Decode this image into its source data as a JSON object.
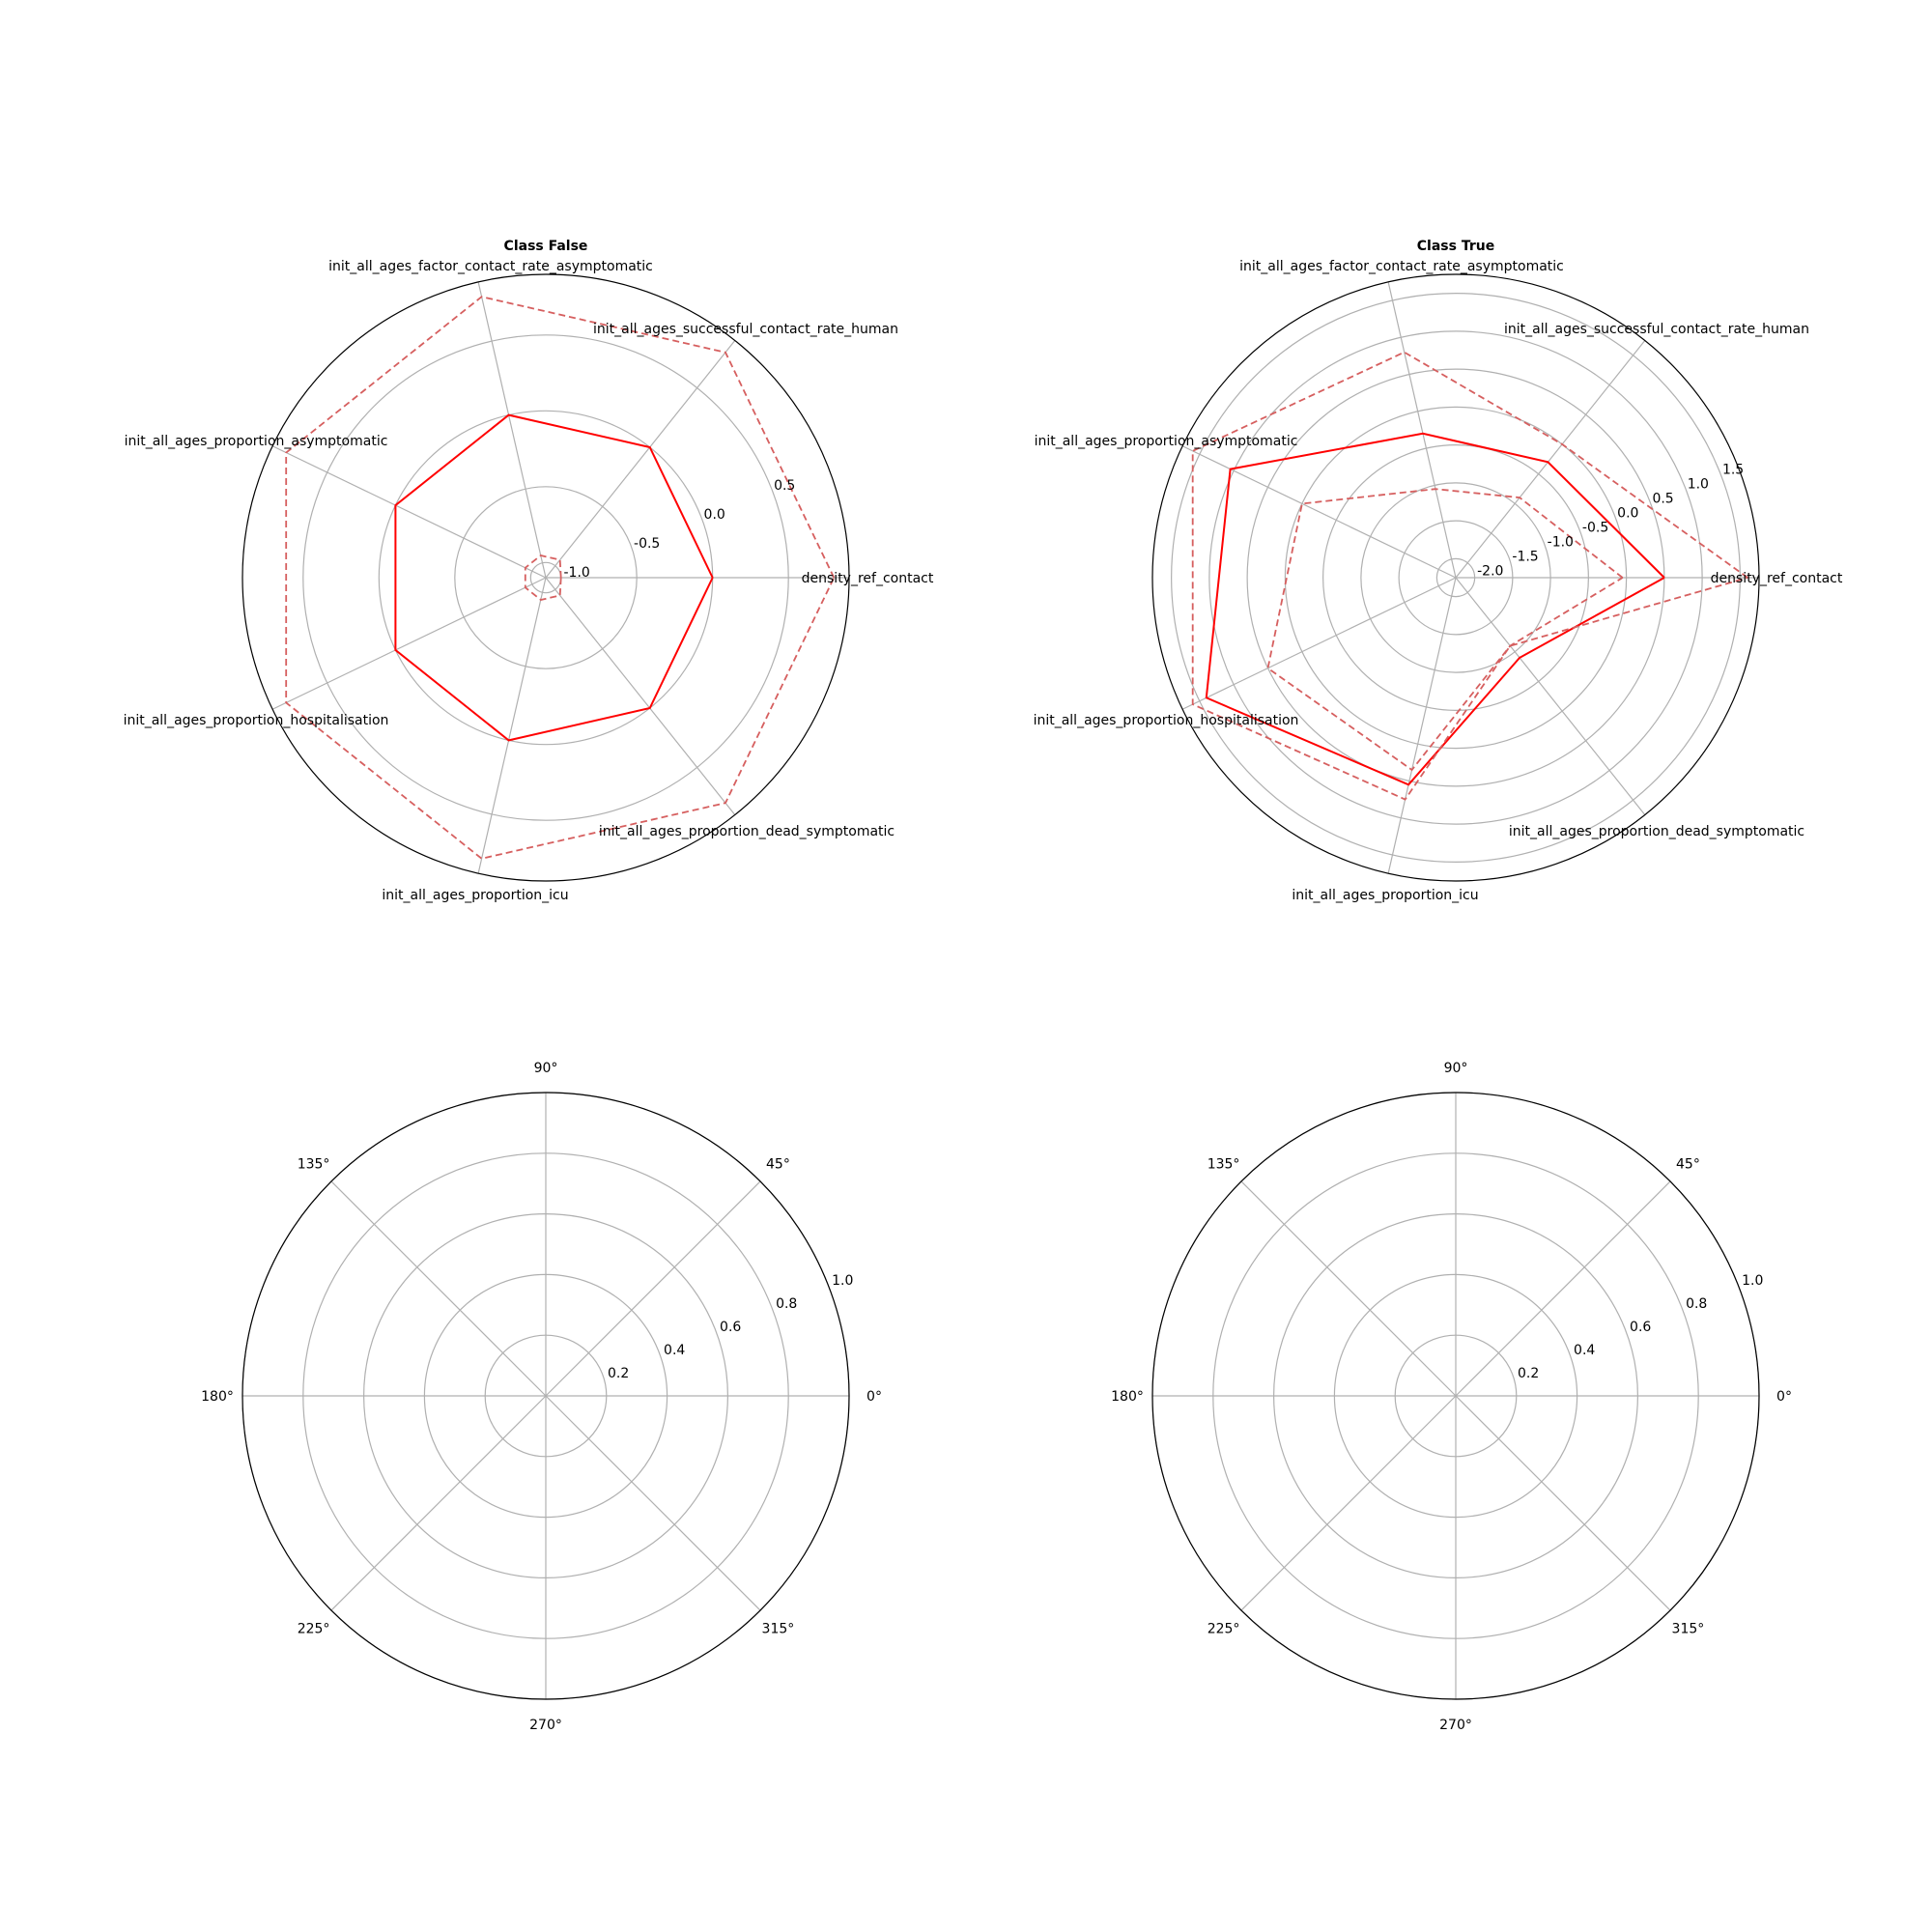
{
  "chart_data": [
    {
      "type": "radar",
      "title": "Class False",
      "categories": [
        "density_ref_contact",
        "init_all_ages_successful_contact_rate_human",
        "init_all_ages_factor_contact_rate_asymptomatic",
        "init_all_ages_proportion_asymptomatic",
        "init_all_ages_proportion_hospitalisation",
        "init_all_ages_proportion_icu",
        "init_all_ages_proportion_dead_symptomatic"
      ],
      "r_ticks": [
        -1.0,
        -0.5,
        0.0,
        0.5
      ],
      "r_tick_labels": [
        "-1.0",
        "-0.5",
        "0.0",
        "0.5"
      ],
      "rlim": [
        -1.1,
        0.9
      ],
      "grid": true,
      "series": [
        {
          "style": "solid",
          "color": "#ff0000",
          "values": [
            0.0,
            0.0,
            0.0,
            0.0,
            0.0,
            0.0,
            0.0
          ]
        },
        {
          "style": "dashed",
          "color": "#d65f5f",
          "values": [
            0.8,
            0.8,
            0.8,
            0.8,
            0.8,
            0.8,
            0.8
          ]
        },
        {
          "style": "dashed",
          "color": "#d65f5f",
          "values": [
            -1.0,
            -0.95,
            -0.95,
            -0.95,
            -0.95,
            -0.95,
            -0.95
          ]
        }
      ]
    },
    {
      "type": "radar",
      "title": "Class True",
      "categories": [
        "density_ref_contact",
        "init_all_ages_successful_contact_rate_human",
        "init_all_ages_factor_contact_rate_asymptomatic",
        "init_all_ages_proportion_asymptomatic",
        "init_all_ages_proportion_hospitalisation",
        "init_all_ages_proportion_icu",
        "init_all_ages_proportion_dead_symptomatic"
      ],
      "r_ticks": [
        -2.0,
        -1.5,
        -1.0,
        -0.5,
        0.0,
        0.5,
        1.0,
        1.5
      ],
      "r_tick_labels": [
        "-2.0",
        "-1.5",
        "-1.0",
        "-0.5",
        "0.0",
        "0.5",
        "1.0",
        "1.5"
      ],
      "rlim": [
        -2.25,
        1.75
      ],
      "grid": true,
      "series": [
        {
          "style": "solid",
          "color": "#ff0000",
          "values": [
            0.5,
            -0.3,
            -0.3,
            1.05,
            1.4,
            0.55,
            -0.9
          ]
        },
        {
          "style": "dashed",
          "color": "#d65f5f",
          "values": [
            1.6,
            0.0,
            0.8,
            1.6,
            1.6,
            0.75,
            -1.1
          ]
        },
        {
          "style": "dashed",
          "color": "#d65f5f",
          "values": [
            -0.05,
            -0.9,
            -1.05,
            0.0,
            0.5,
            0.35,
            -1.1
          ]
        }
      ]
    },
    {
      "type": "polar",
      "title": "",
      "angle_labels": [
        "0°",
        "45°",
        "90°",
        "135°",
        "180°",
        "225°",
        "270°",
        "315°"
      ],
      "r_ticks": [
        0.2,
        0.4,
        0.6,
        0.8,
        1.0
      ],
      "r_tick_labels": [
        "0.2",
        "0.4",
        "0.6",
        "0.8",
        "1.0"
      ],
      "rlim": [
        0,
        1.0
      ],
      "grid": true,
      "series": []
    },
    {
      "type": "polar",
      "title": "",
      "angle_labels": [
        "0°",
        "45°",
        "90°",
        "135°",
        "180°",
        "225°",
        "270°",
        "315°"
      ],
      "r_ticks": [
        0.2,
        0.4,
        0.6,
        0.8,
        1.0
      ],
      "r_tick_labels": [
        "0.2",
        "0.4",
        "0.6",
        "0.8",
        "1.0"
      ],
      "rlim": [
        0,
        1.0
      ],
      "grid": true,
      "series": []
    }
  ]
}
